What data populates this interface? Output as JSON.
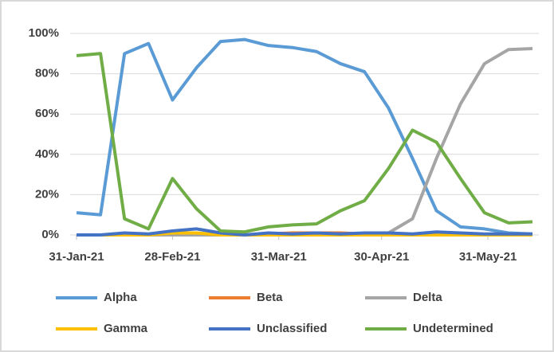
{
  "chart_data": {
    "type": "line",
    "x": [
      "2021-01-31",
      "2021-02-07",
      "2021-02-14",
      "2021-02-21",
      "2021-02-28",
      "2021-03-07",
      "2021-03-14",
      "2021-03-21",
      "2021-03-28",
      "2021-04-04",
      "2021-04-11",
      "2021-04-18",
      "2021-04-25",
      "2021-05-02",
      "2021-05-09",
      "2021-05-16",
      "2021-05-23",
      "2021-05-30",
      "2021-06-06",
      "2021-06-13"
    ],
    "xlim": [
      "2021-01-31",
      "2021-06-13"
    ],
    "xticks": [
      {
        "value": "2021-01-31",
        "label": "31-Jan-21"
      },
      {
        "value": "2021-02-28",
        "label": "28-Feb-21"
      },
      {
        "value": "2021-03-31",
        "label": "31-Mar-21"
      },
      {
        "value": "2021-04-30",
        "label": "30-Apr-21"
      },
      {
        "value": "2021-05-31",
        "label": "31-May-21"
      }
    ],
    "ylim": [
      0,
      100
    ],
    "yticks": [
      {
        "value": 0,
        "label": "0%"
      },
      {
        "value": 20,
        "label": "20%"
      },
      {
        "value": 40,
        "label": "40%"
      },
      {
        "value": 60,
        "label": "60%"
      },
      {
        "value": 80,
        "label": "80%"
      },
      {
        "value": 100,
        "label": "100%"
      }
    ],
    "grid": true,
    "legend": "bottom",
    "series": [
      {
        "name": "Alpha",
        "color": "#5b9bd5",
        "values": [
          11,
          10,
          90,
          95,
          67,
          83,
          96,
          97,
          94,
          93,
          91,
          85,
          81,
          63,
          38,
          12,
          4,
          3,
          1,
          0.5
        ]
      },
      {
        "name": "Beta",
        "color": "#ed7d31",
        "values": [
          0,
          0,
          0,
          0,
          0.5,
          0.5,
          0,
          0,
          0.5,
          1,
          1,
          1,
          0.5,
          0.5,
          0,
          0,
          0,
          0,
          0,
          0
        ]
      },
      {
        "name": "Delta",
        "color": "#a5a5a5",
        "values": [
          0,
          0,
          0,
          0,
          0,
          0,
          0,
          0,
          0,
          0,
          0,
          0,
          0,
          1,
          8,
          38,
          65,
          85,
          92,
          92.5
        ]
      },
      {
        "name": "Gamma",
        "color": "#ffc000",
        "values": [
          0,
          0,
          0,
          0,
          1,
          1,
          0,
          0,
          0,
          0,
          0,
          0,
          0,
          0,
          0,
          0,
          0,
          0,
          0,
          0
        ]
      },
      {
        "name": "Unclassified",
        "color": "#4472c4",
        "values": [
          0,
          0,
          1,
          0.5,
          2,
          3,
          1,
          0,
          1,
          0.5,
          1,
          0.5,
          1,
          1,
          0.5,
          1.5,
          1,
          0.5,
          0.5,
          0.5
        ]
      },
      {
        "name": "Undetermined",
        "color": "#70ad47",
        "values": [
          89,
          90,
          8,
          3,
          28,
          13,
          2,
          1.5,
          4,
          5,
          5.5,
          12,
          17,
          33,
          52,
          46,
          28,
          11,
          6,
          6.5
        ]
      }
    ]
  }
}
